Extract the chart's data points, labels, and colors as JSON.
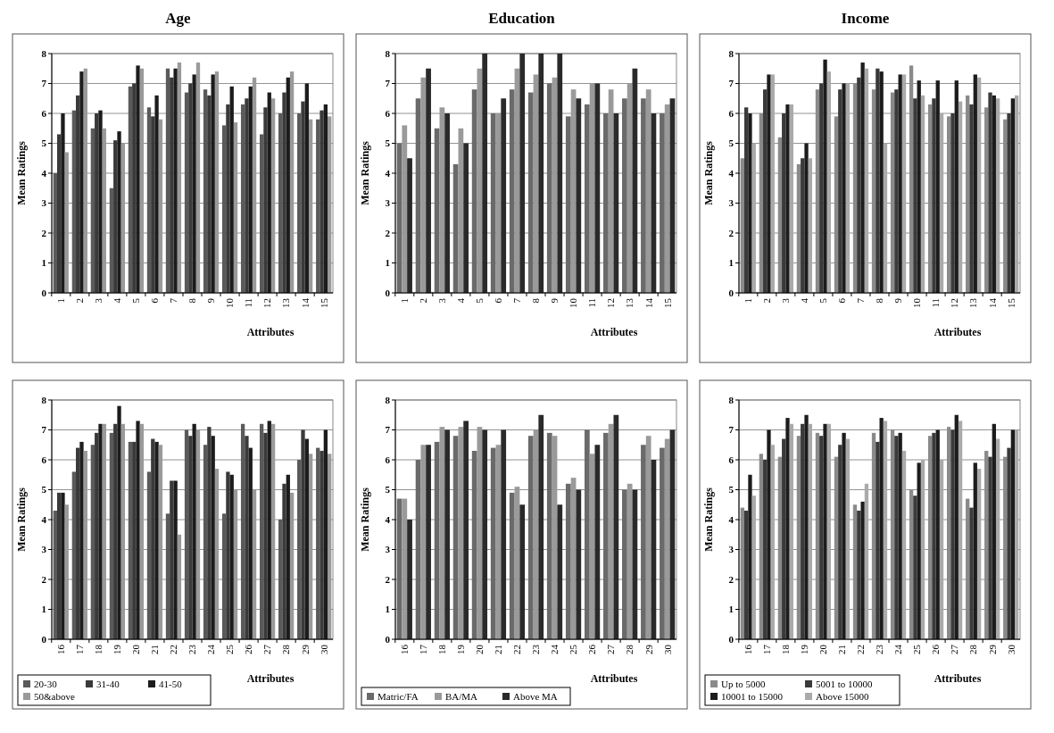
{
  "chart_data": [
    {
      "type": "bar",
      "title": "Age",
      "xlabel": "Attributes",
      "ylabel": "Mean Ratings",
      "categories": [
        "1",
        "2",
        "3",
        "4",
        "5",
        "6",
        "7",
        "8",
        "9",
        "10",
        "11",
        "12",
        "13",
        "14",
        "15"
      ],
      "ylim": [
        0,
        8
      ],
      "yticks": [
        0,
        1,
        2,
        3,
        4,
        5,
        6,
        7,
        8
      ],
      "grid": "y",
      "legend": false,
      "series": [
        {
          "color": "#5a5a5a",
          "values": [
            4.0,
            6.1,
            5.5,
            3.5,
            6.9,
            6.2,
            7.5,
            6.7,
            6.8,
            5.6,
            6.3,
            5.3,
            6.0,
            6.0,
            5.8
          ]
        },
        {
          "color": "#3a3a3a",
          "values": [
            5.3,
            6.6,
            6.0,
            5.1,
            7.0,
            5.9,
            7.2,
            7.0,
            6.6,
            6.3,
            6.5,
            6.2,
            6.7,
            6.4,
            6.1
          ]
        },
        {
          "color": "#1c1c1c",
          "values": [
            6.0,
            7.4,
            6.1,
            5.4,
            7.6,
            6.6,
            7.5,
            7.3,
            7.3,
            6.9,
            6.9,
            6.7,
            7.2,
            7.0,
            6.3
          ]
        },
        {
          "color": "#9a9a9a",
          "values": [
            4.7,
            7.5,
            5.5,
            5.0,
            7.5,
            5.8,
            7.7,
            7.7,
            7.4,
            5.7,
            7.2,
            6.5,
            7.4,
            5.8,
            5.9
          ]
        }
      ]
    },
    {
      "type": "bar",
      "title": "Education",
      "xlabel": "Attributes",
      "ylabel": "Mean Ratings",
      "categories": [
        "1",
        "2",
        "3",
        "4",
        "5",
        "6",
        "7",
        "8",
        "9",
        "10",
        "11",
        "12",
        "13",
        "14",
        "15"
      ],
      "ylim": [
        0,
        8
      ],
      "yticks": [
        0,
        1,
        2,
        3,
        4,
        5,
        6,
        7,
        8
      ],
      "grid": "y",
      "legend": false,
      "series": [
        {
          "color": "#6a6a6a",
          "values": [
            5.0,
            6.5,
            5.5,
            4.3,
            6.8,
            6.0,
            6.8,
            6.7,
            7.0,
            5.9,
            6.3,
            6.0,
            6.5,
            6.5,
            6.0
          ]
        },
        {
          "color": "#9a9a9a",
          "values": [
            5.6,
            7.2,
            6.2,
            5.5,
            7.5,
            6.0,
            7.5,
            7.3,
            7.2,
            6.8,
            7.0,
            6.8,
            7.0,
            6.8,
            6.3
          ]
        },
        {
          "color": "#2a2a2a",
          "values": [
            4.5,
            7.5,
            6.0,
            5.0,
            8.0,
            6.5,
            8.0,
            8.0,
            8.0,
            6.5,
            7.0,
            6.0,
            7.5,
            6.0,
            6.5
          ]
        }
      ]
    },
    {
      "type": "bar",
      "title": "Income",
      "xlabel": "Attributes",
      "ylabel": "Mean Ratings",
      "categories": [
        "1",
        "2",
        "3",
        "4",
        "5",
        "6",
        "7",
        "8",
        "9",
        "10",
        "11",
        "12",
        "13",
        "14",
        "15"
      ],
      "ylim": [
        0,
        8
      ],
      "yticks": [
        0,
        1,
        2,
        3,
        4,
        5,
        6,
        7,
        8
      ],
      "grid": "y",
      "legend": false,
      "series": [
        {
          "color": "#8a8a8a",
          "values": [
            4.5,
            6.0,
            5.2,
            4.3,
            6.8,
            5.9,
            7.0,
            6.8,
            6.7,
            7.6,
            6.3,
            5.9,
            6.6,
            6.2,
            5.8
          ]
        },
        {
          "color": "#3a3a3a",
          "values": [
            6.2,
            6.8,
            6.0,
            4.5,
            7.0,
            6.8,
            7.2,
            7.5,
            6.8,
            6.5,
            6.5,
            6.0,
            6.3,
            6.7,
            6.0
          ]
        },
        {
          "color": "#1c1c1c",
          "values": [
            6.0,
            7.3,
            6.3,
            5.0,
            7.8,
            7.0,
            7.7,
            7.4,
            7.3,
            7.1,
            7.1,
            7.1,
            7.3,
            6.6,
            6.5
          ]
        },
        {
          "color": "#aaaaaa",
          "values": [
            5.0,
            7.3,
            6.3,
            4.5,
            7.4,
            7.0,
            7.5,
            5.0,
            7.3,
            6.6,
            6.0,
            6.4,
            7.2,
            6.5,
            6.6
          ]
        }
      ]
    },
    {
      "type": "bar",
      "xlabel": "Attributes",
      "ylabel": "Mean Ratings",
      "categories": [
        "16",
        "17",
        "18",
        "19",
        "20",
        "21",
        "22",
        "23",
        "24",
        "25",
        "26",
        "27",
        "28",
        "29",
        "30"
      ],
      "ylim": [
        0,
        8
      ],
      "yticks": [
        0,
        1,
        2,
        3,
        4,
        5,
        6,
        7,
        8
      ],
      "grid": "y",
      "legend": "bottom left",
      "series": [
        {
          "name": "20-30",
          "color": "#5a5a5a",
          "values": [
            4.3,
            5.6,
            6.5,
            6.9,
            6.6,
            5.6,
            4.2,
            7.0,
            6.5,
            4.2,
            7.2,
            7.2,
            4.0,
            6.0,
            6.4
          ]
        },
        {
          "name": "31-40",
          "color": "#3a3a3a",
          "values": [
            4.9,
            6.4,
            6.9,
            7.2,
            6.6,
            6.7,
            5.3,
            6.8,
            7.1,
            5.6,
            6.8,
            6.9,
            5.2,
            7.0,
            6.3
          ]
        },
        {
          "name": "41-50",
          "color": "#1c1c1c",
          "values": [
            4.9,
            6.6,
            7.2,
            7.8,
            7.3,
            6.6,
            5.3,
            7.2,
            6.8,
            5.5,
            6.4,
            7.3,
            5.5,
            6.7,
            7.0
          ]
        },
        {
          "name": "50&above",
          "color": "#9a9a9a",
          "values": [
            4.5,
            6.3,
            7.2,
            7.2,
            7.2,
            6.5,
            3.5,
            7.0,
            5.7,
            5.0,
            5.0,
            7.2,
            4.9,
            6.2,
            6.2
          ]
        }
      ]
    },
    {
      "type": "bar",
      "xlabel": "Attributes",
      "ylabel": "Mean Ratings",
      "categories": [
        "16",
        "17",
        "18",
        "19",
        "20",
        "21",
        "22",
        "23",
        "24",
        "25",
        "26",
        "27",
        "28",
        "29",
        "30"
      ],
      "ylim": [
        0,
        8
      ],
      "yticks": [
        0,
        1,
        2,
        3,
        4,
        5,
        6,
        7,
        8
      ],
      "grid": "y",
      "legend": "bottom left",
      "series": [
        {
          "name": "Matric/FA",
          "color": "#6a6a6a",
          "values": [
            4.7,
            6.0,
            6.6,
            6.8,
            6.3,
            6.4,
            4.9,
            6.8,
            6.9,
            5.2,
            7.0,
            6.9,
            5.0,
            6.5,
            6.4
          ]
        },
        {
          "name": "BA/MA",
          "color": "#9a9a9a",
          "values": [
            4.7,
            6.5,
            7.1,
            7.1,
            7.1,
            6.5,
            5.1,
            7.0,
            6.8,
            5.4,
            6.2,
            7.2,
            5.2,
            6.8,
            6.7
          ]
        },
        {
          "name": "Above MA",
          "color": "#2a2a2a",
          "values": [
            4.0,
            6.5,
            7.0,
            7.3,
            7.0,
            7.0,
            4.5,
            7.5,
            4.5,
            5.0,
            6.5,
            7.5,
            5.0,
            6.0,
            7.0
          ]
        }
      ]
    },
    {
      "type": "bar",
      "xlabel": "Attributes",
      "ylabel": "Mean Ratings",
      "categories": [
        "16",
        "17",
        "18",
        "19",
        "20",
        "21",
        "22",
        "23",
        "24",
        "25",
        "26",
        "27",
        "28",
        "29",
        "30"
      ],
      "ylim": [
        0,
        8
      ],
      "yticks": [
        0,
        1,
        2,
        3,
        4,
        5,
        6,
        7,
        8
      ],
      "grid": "y",
      "legend": "bottom left",
      "series": [
        {
          "name": "Up to 5000",
          "color": "#8a8a8a",
          "values": [
            4.4,
            6.2,
            6.1,
            6.8,
            6.9,
            6.1,
            4.5,
            6.9,
            7.0,
            5.0,
            6.8,
            7.1,
            4.7,
            6.3,
            6.1
          ]
        },
        {
          "name": "5001 to 10000",
          "color": "#3a3a3a",
          "values": [
            4.3,
            6.0,
            6.7,
            7.2,
            6.8,
            6.5,
            4.3,
            6.6,
            6.8,
            4.8,
            6.9,
            7.0,
            4.4,
            6.1,
            6.4
          ]
        },
        {
          "name": "10001 to 15000",
          "color": "#1c1c1c",
          "values": [
            5.5,
            7.0,
            7.4,
            7.5,
            7.2,
            6.9,
            4.6,
            7.4,
            6.9,
            5.9,
            7.0,
            7.5,
            5.9,
            7.2,
            7.0
          ]
        },
        {
          "name": "Above 15000",
          "color": "#aaaaaa",
          "values": [
            4.8,
            6.5,
            7.2,
            7.2,
            7.2,
            6.7,
            5.2,
            7.3,
            6.3,
            6.0,
            6.0,
            7.3,
            5.7,
            6.7,
            7.0
          ]
        }
      ]
    }
  ]
}
